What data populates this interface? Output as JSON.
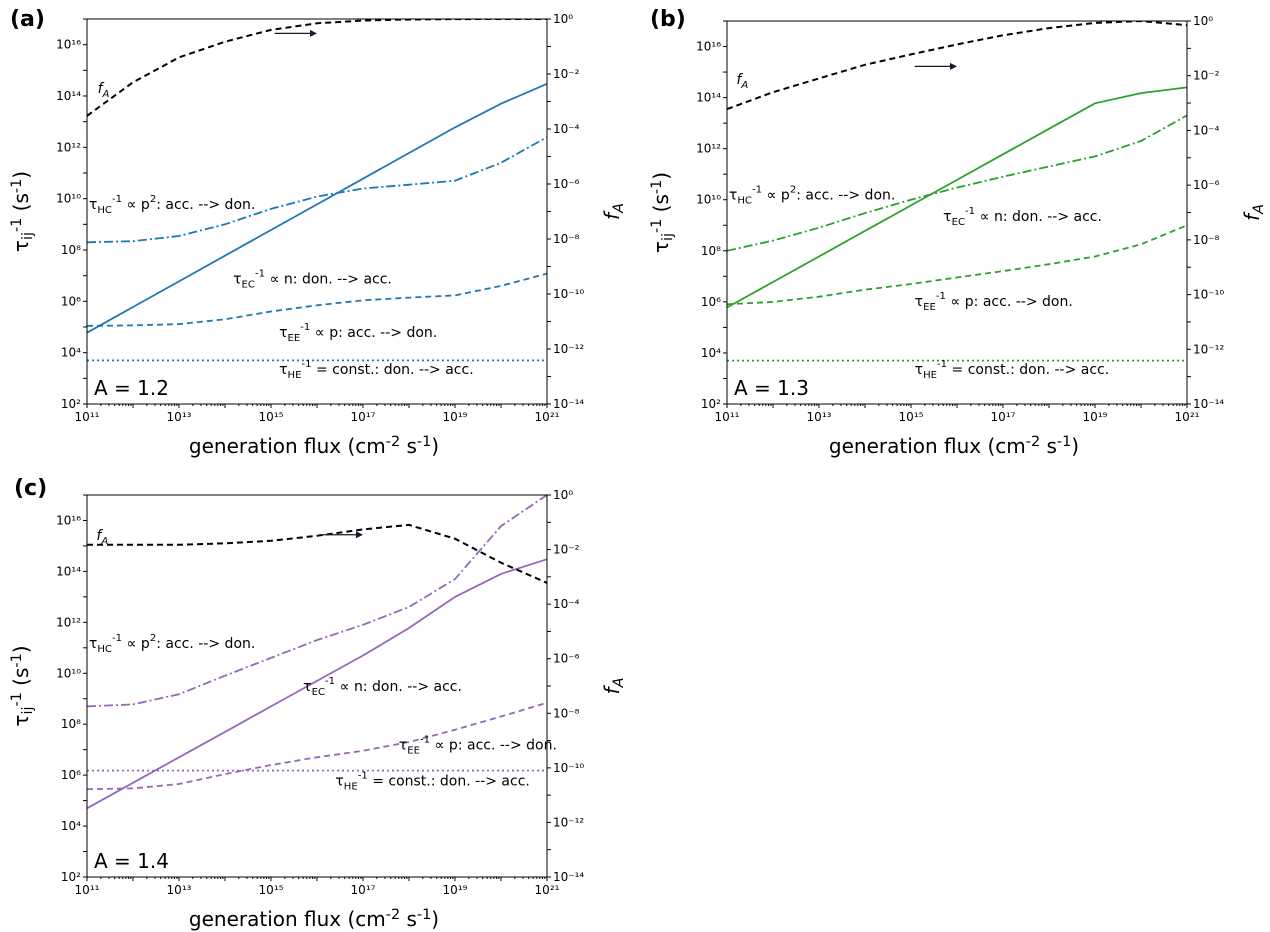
{
  "xlabel": "generation flux (cm$^{-2}$ s$^{-1}$)",
  "ylabel_left": "τ$_{ij}$$^{-1}$ (s$^{-1}$)",
  "ylabel_right": "f$_{A}$",
  "chart_data": [
    {
      "type": "line",
      "panel_label": "(a)",
      "a_label": "A = 1.2",
      "color": "#1f77b4",
      "xscale": "log",
      "xlim": [
        100000000000.0,
        1e+21
      ],
      "yscale": "log",
      "ylim": [
        100.0,
        1e+17
      ],
      "y2scale": "log",
      "y2lim": [
        1e-14,
        1
      ],
      "x": [
        100000000000.0,
        1000000000000.0,
        10000000000000.0,
        100000000000000.0,
        1000000000000000.0,
        1e+16,
        1e+17,
        1e+18,
        1e+19,
        1e+20,
        1e+21
      ],
      "series": [
        {
          "name": "τ_EC^-1 ∝ n: don. --> acc.",
          "style": "solid",
          "axis": "left",
          "values": [
            60000.0,
            600000.0,
            6000000.0,
            60000000.0,
            600000000.0,
            6000000000.0,
            60000000000.0,
            600000000000.0,
            6000000000000.0,
            50000000000000.0,
            300000000000000.0
          ],
          "label": "τ$_{EC}$$^{-1}$ ∝ n: don. --> acc.",
          "label_x": 150000000000000.0,
          "label_y": 5000000.0
        },
        {
          "name": "τ_HC^-1 ∝ p²: acc. --> don.",
          "style": "dashdot",
          "axis": "left",
          "values": [
            200000000.0,
            220000000.0,
            350000000.0,
            1000000000.0,
            4000000000.0,
            12000000000.0,
            25000000000.0,
            35000000000.0,
            50000000000.0,
            250000000000.0,
            2500000000000.0
          ],
          "label": "τ$_{HC}$$^{-1}$ ∝ p$^{2}$: acc. --> don.",
          "label_x": 110000000000.0,
          "label_y": 4000000000.0
        },
        {
          "name": "τ_EE^-1 ∝ p: acc. --> don.",
          "style": "dashed",
          "axis": "left",
          "values": [
            110000.0,
            115000.0,
            130000.0,
            200000.0,
            400000.0,
            700000.0,
            1100000.0,
            1400000.0,
            1700000.0,
            4000000.0,
            12000000.0
          ],
          "label": "τ$_{EE}$$^{-1}$ ∝ p: acc. --> don.",
          "label_x": 1500000000000000.0,
          "label_y": 40000.0
        },
        {
          "name": "τ_HE^-1 = const.: don. --> acc.",
          "style": "dotted",
          "axis": "left",
          "values": [
            5000.0,
            5000.0,
            5000.0,
            5000.0,
            5000.0,
            5000.0,
            5000.0,
            5000.0,
            5000.0,
            5000.0,
            5000.0
          ],
          "label": "τ$_{HE}$$^{-1}$ = const.: don. --> acc.",
          "label_x": 1500000000000000.0,
          "label_y": 1500.0
        },
        {
          "name": "f_A",
          "style": "dashed",
          "axis": "right",
          "color": "#000000",
          "values": [
            0.0003,
            0.005,
            0.04,
            0.15,
            0.4,
            0.7,
            0.88,
            0.96,
            0.99,
            1,
            1
          ],
          "label": "f$_{A}$",
          "label_x": 170000000000.0,
          "label_y": 0.002
        }
      ],
      "arrow": {
        "x1": 1200000000000000.0,
        "x2": 1e+16,
        "y2": 0.3
      }
    },
    {
      "type": "line",
      "panel_label": "(b)",
      "a_label": "A = 1.3",
      "color": "#2ca02c",
      "xscale": "log",
      "xlim": [
        100000000000.0,
        1e+21
      ],
      "yscale": "log",
      "ylim": [
        100.0,
        1e+17
      ],
      "y2scale": "log",
      "y2lim": [
        1e-14,
        1
      ],
      "x": [
        100000000000.0,
        1000000000000.0,
        10000000000000.0,
        100000000000000.0,
        1000000000000000.0,
        1e+16,
        1e+17,
        1e+18,
        1e+19,
        1e+20,
        1e+21
      ],
      "series": [
        {
          "name": "τ_EC^-1 ∝ n: don. --> acc.",
          "style": "solid",
          "axis": "left",
          "values": [
            600000.0,
            6000000.0,
            60000000.0,
            600000000.0,
            6000000000.0,
            60000000000.0,
            600000000000.0,
            6000000000000.0,
            60000000000000.0,
            150000000000000.0,
            250000000000000.0
          ],
          "label": "τ$_{EC}$$^{-1}$ ∝ n: don. --> acc.",
          "label_x": 5000000000000000.0,
          "label_y": 1500000000.0
        },
        {
          "name": "τ_HC^-1 ∝ p²: acc. --> don.",
          "style": "dashdot",
          "axis": "left",
          "values": [
            100000000.0,
            250000000.0,
            800000000.0,
            3000000000.0,
            10000000000.0,
            30000000000.0,
            80000000000.0,
            200000000000.0,
            500000000000.0,
            2000000000000.0,
            20000000000000.0
          ],
          "label": "τ$_{HC}$$^{-1}$ ∝ p$^{2}$: acc. --> don.",
          "label_x": 110000000000.0,
          "label_y": 10000000000.0
        },
        {
          "name": "τ_EE^-1 ∝ p: acc. --> don.",
          "style": "dashed",
          "axis": "left",
          "values": [
            800000.0,
            1000000.0,
            1600000.0,
            3000000.0,
            5000000.0,
            9000000.0,
            16000000.0,
            30000000.0,
            60000000.0,
            180000000.0,
            1000000000.0
          ],
          "label": "τ$_{EE}$$^{-1}$ ∝ p: acc. --> don.",
          "label_x": 1200000000000000.0,
          "label_y": 700000.0
        },
        {
          "name": "τ_HE^-1 = const.: don. --> acc.",
          "style": "dotted",
          "axis": "left",
          "values": [
            5000.0,
            5000.0,
            5000.0,
            5000.0,
            5000.0,
            5000.0,
            5000.0,
            5000.0,
            5000.0,
            5000.0,
            5000.0
          ],
          "label": "τ$_{HE}$$^{-1}$ = const.: don. --> acc.",
          "label_x": 1200000000000000.0,
          "label_y": 1500.0
        },
        {
          "name": "f_A",
          "style": "dashed",
          "axis": "right",
          "color": "#000000",
          "values": [
            0.0006,
            0.0025,
            0.008,
            0.025,
            0.06,
            0.14,
            0.3,
            0.55,
            0.85,
            1,
            0.7
          ],
          "label": "f$_{A}$",
          "label_x": 160000000000.0,
          "label_y": 0.005
        }
      ],
      "arrow": {
        "x1": 1200000000000000.0,
        "x2": 1e+16,
        "y2": 0.022
      }
    },
    {
      "type": "line",
      "panel_label": "(c)",
      "a_label": "A = 1.4",
      "color": "#9467bd",
      "xscale": "log",
      "xlim": [
        100000000000.0,
        1e+21
      ],
      "yscale": "log",
      "ylim": [
        100.0,
        1e+17
      ],
      "y2scale": "log",
      "y2lim": [
        1e-14,
        1
      ],
      "x": [
        100000000000.0,
        1000000000000.0,
        10000000000000.0,
        100000000000000.0,
        1000000000000000.0,
        1e+16,
        1e+17,
        1e+18,
        1e+19,
        1e+20,
        1e+21
      ],
      "series": [
        {
          "name": "τ_EC^-1 ∝ n: don. --> acc.",
          "style": "solid",
          "axis": "left",
          "values": [
            50000.0,
            500000.0,
            5000000.0,
            50000000.0,
            500000000.0,
            5000000000.0,
            50000000000.0,
            600000000000.0,
            10000000000000.0,
            80000000000000.0,
            300000000000000.0
          ],
          "label": "τ$_{EC}$$^{-1}$ ∝ n: don. --> acc.",
          "label_x": 5000000000000000.0,
          "label_y": 2000000000.0
        },
        {
          "name": "τ_HC^-1 ∝ p²: acc. --> don.",
          "style": "dashdot",
          "axis": "left",
          "values": [
            500000000.0,
            600000000.0,
            1500000000.0,
            8000000000.0,
            40000000000.0,
            200000000000.0,
            800000000000.0,
            4000000000000.0,
            50000000000000.0,
            6000000000000000.0,
            1e+17
          ],
          "label": "τ$_{HC}$$^{-1}$ ∝ p$^{2}$: acc. --> don.",
          "label_x": 110000000000.0,
          "label_y": 100000000000.0
        },
        {
          "name": "τ_EE^-1 ∝ p: acc. --> don.",
          "style": "dashed",
          "axis": "left",
          "values": [
            280000.0,
            300000.0,
            450000.0,
            1100000.0,
            2500000.0,
            5000000.0,
            9000000.0,
            20000000.0,
            60000000.0,
            200000000.0,
            700000000.0
          ],
          "label": "τ$_{EE}$$^{-1}$ ∝ p: acc. --> don.",
          "label_x": 6e+17,
          "label_y": 10000000.0
        },
        {
          "name": "τ_HE^-1 = const.: don. --> acc.",
          "style": "dotted",
          "axis": "left",
          "values": [
            1500000.0,
            1500000.0,
            1500000.0,
            1500000.0,
            1500000.0,
            1500000.0,
            1500000.0,
            1500000.0,
            1500000.0,
            1500000.0,
            1500000.0
          ],
          "label": "τ$_{HE}$$^{-1}$ = const.: don. --> acc.",
          "label_x": 2.5e+16,
          "label_y": 400000.0
        },
        {
          "name": "f_A",
          "style": "dashed",
          "axis": "right",
          "color": "#000000",
          "values": [
            0.015,
            0.015,
            0.015,
            0.017,
            0.021,
            0.032,
            0.055,
            0.08,
            0.025,
            0.0033,
            0.0006
          ],
          "label": "f$_{A}$",
          "label_x": 160000000000.0,
          "label_y": 0.022
        }
      ],
      "arrow": {
        "x1": 1.2e+16,
        "x2": 1e+17,
        "y2": 0.035
      }
    }
  ]
}
